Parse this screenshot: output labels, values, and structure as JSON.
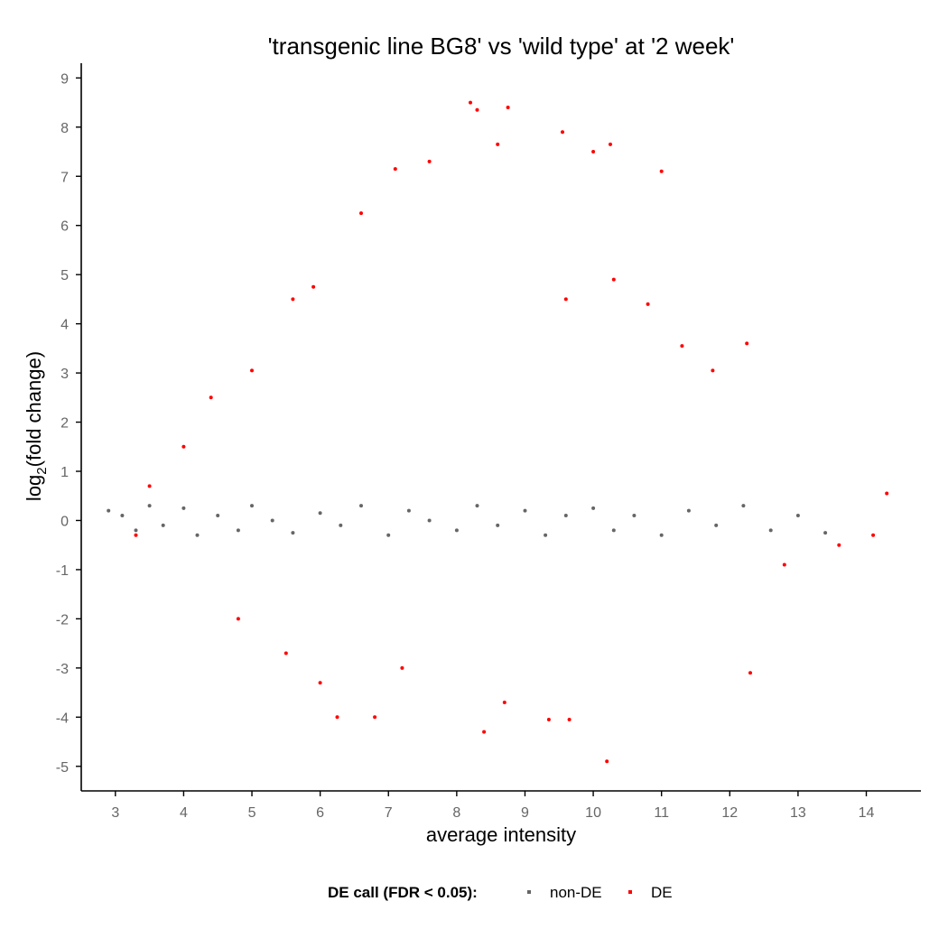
{
  "chart_data": {
    "type": "scatter",
    "title": "'transgenic line BG8' vs 'wild type' at '2 week'",
    "xlabel": "average intensity",
    "ylabel_base": "log",
    "ylabel_sub": "2",
    "ylabel_rest": "(fold change)",
    "xlim": [
      2.5,
      14.8
    ],
    "ylim": [
      -5.5,
      9.3
    ],
    "xticks": [
      "3",
      "4",
      "5",
      "6",
      "7",
      "8",
      "9",
      "10",
      "11",
      "12",
      "13",
      "14"
    ],
    "yticks": [
      "9",
      "8",
      "7",
      "6",
      "5",
      "4",
      "3",
      "2",
      "1",
      "0",
      "-1",
      "-2",
      "-3",
      "-4",
      "-5"
    ],
    "grid": false,
    "legend": {
      "position": "bottom",
      "title": "DE call (FDR < 0.05):",
      "entries": [
        {
          "label": "non-DE",
          "color": "#666666"
        },
        {
          "label": "DE",
          "color": "#ff0000"
        }
      ]
    },
    "series": [
      {
        "name": "non-DE",
        "color": "#666666",
        "x": [
          2.9,
          3.1,
          3.3,
          3.5,
          3.7,
          4.0,
          4.2,
          4.5,
          4.8,
          5.0,
          5.3,
          5.6,
          6.0,
          6.3,
          6.6,
          7.0,
          7.3,
          7.6,
          8.0,
          8.3,
          8.6,
          9.0,
          9.3,
          9.6,
          10.0,
          10.3,
          10.6,
          11.0,
          11.4,
          11.8,
          12.2,
          12.6,
          13.0,
          13.4
        ],
        "y": [
          0.2,
          0.1,
          -0.2,
          0.3,
          -0.1,
          0.25,
          -0.3,
          0.1,
          -0.2,
          0.3,
          0.0,
          -0.25,
          0.15,
          -0.1,
          0.3,
          -0.3,
          0.2,
          0.0,
          -0.2,
          0.3,
          -0.1,
          0.2,
          -0.3,
          0.1,
          0.25,
          -0.2,
          0.1,
          -0.3,
          0.2,
          -0.1,
          0.3,
          -0.2,
          0.1,
          -0.25
        ]
      },
      {
        "name": "DE",
        "color": "#ff0000",
        "x": [
          8.2,
          8.3,
          8.75,
          9.55,
          10.0,
          10.25,
          11.0,
          8.6,
          7.6,
          7.1,
          6.6,
          5.9,
          5.6,
          5.0,
          4.4,
          4.0,
          3.5,
          3.3,
          12.25,
          11.75,
          11.3,
          10.8,
          10.3,
          9.6,
          8.4,
          7.2,
          10.2,
          8.7,
          9.35,
          9.65,
          6.0,
          6.25,
          6.8,
          5.5,
          4.8,
          12.3,
          12.8,
          13.6,
          14.1,
          14.3
        ],
        "y": [
          8.5,
          8.35,
          8.4,
          7.9,
          7.5,
          7.65,
          7.1,
          7.65,
          7.3,
          7.15,
          6.25,
          4.75,
          4.5,
          3.05,
          2.5,
          1.5,
          0.7,
          -0.3,
          3.6,
          3.05,
          3.55,
          4.4,
          4.9,
          4.5,
          -4.3,
          -3.0,
          -4.9,
          -3.7,
          -4.05,
          -4.05,
          -3.3,
          -4.0,
          -4.0,
          -2.7,
          -2.0,
          -3.1,
          -0.9,
          -0.5,
          -0.3,
          0.55
        ]
      }
    ]
  }
}
